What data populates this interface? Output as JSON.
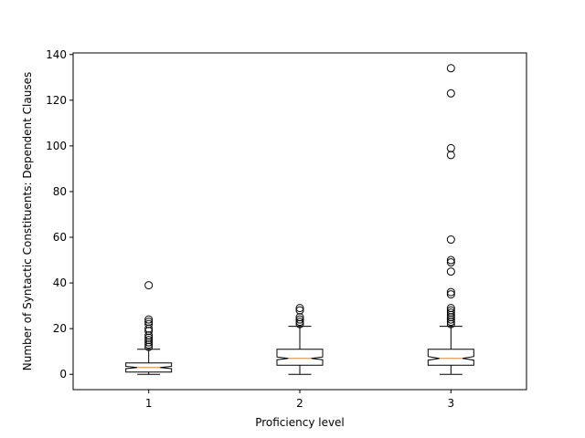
{
  "chart_data": {
    "type": "boxplot",
    "notched": true,
    "title": "",
    "xlabel": "Proficiency level",
    "ylabel": "Number of Syntactic Constituents: Dependent Clauses",
    "categories": [
      "1",
      "2",
      "3"
    ],
    "ylim": [
      -6.7,
      140.7
    ],
    "yticks": [
      0,
      20,
      40,
      60,
      80,
      100,
      120,
      140
    ],
    "grid": false,
    "colors": {
      "box": "#000000",
      "median": "#ff7f0e",
      "flier": "#000000"
    },
    "boxes": [
      {
        "category": "1",
        "whisker_low": 0,
        "q1": 1,
        "median": 3,
        "q3": 5,
        "whisker_high": 11,
        "notch_low": 2.5,
        "notch_high": 3.5,
        "fliers": [
          12,
          13,
          14,
          15,
          16,
          17,
          19,
          20,
          22,
          23,
          24,
          39
        ]
      },
      {
        "category": "2",
        "whisker_low": 0,
        "q1": 4,
        "median": 7,
        "q3": 11,
        "whisker_high": 21,
        "notch_low": 6.4,
        "notch_high": 7.6,
        "fliers": [
          22,
          23,
          24,
          25,
          28,
          29
        ]
      },
      {
        "category": "3",
        "whisker_low": 0,
        "q1": 4,
        "median": 7,
        "q3": 11,
        "whisker_high": 21,
        "notch_low": 6.2,
        "notch_high": 7.8,
        "fliers": [
          22,
          23,
          24,
          25,
          26,
          27,
          28,
          29,
          35,
          36,
          45,
          49,
          50,
          59,
          96,
          99,
          123,
          134
        ]
      }
    ]
  }
}
